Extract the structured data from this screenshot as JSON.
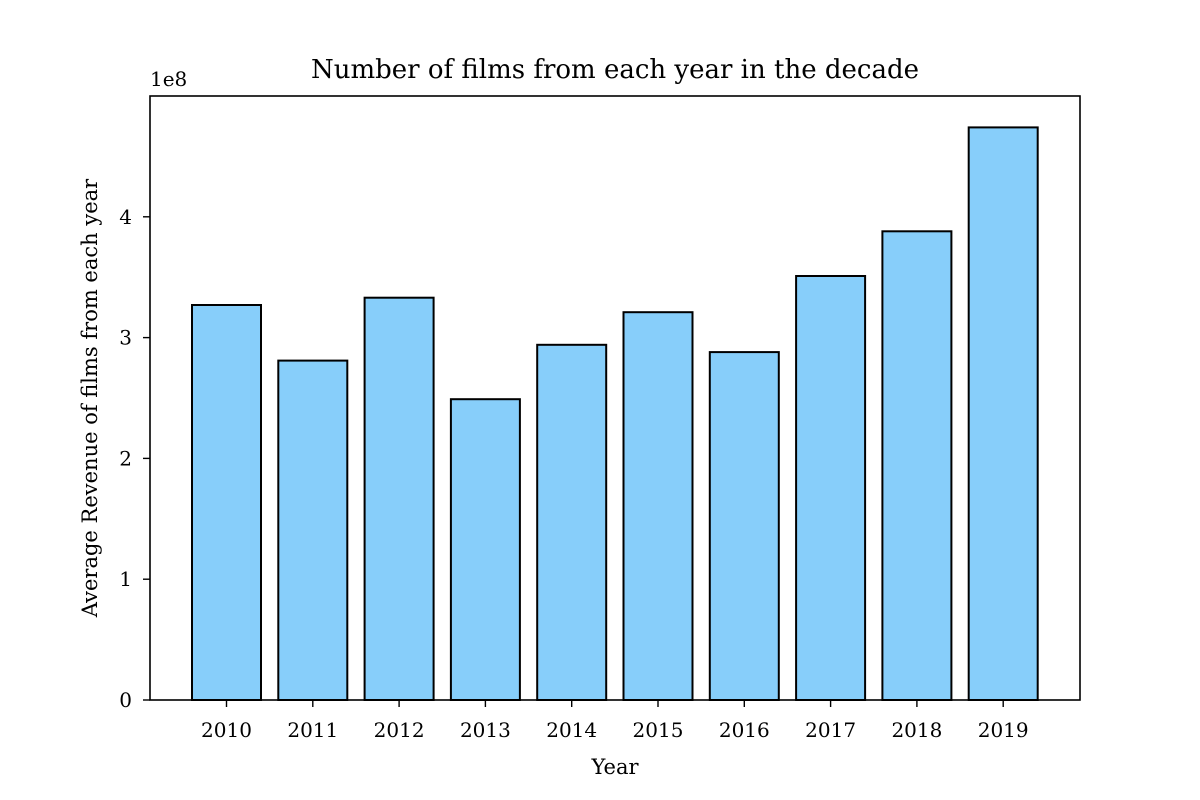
{
  "chart_data": {
    "type": "bar",
    "title": "Number of films from each year in the decade",
    "xlabel": "Year",
    "ylabel": "Average Revenue of films from each year",
    "y_offset_label": "1e8",
    "categories": [
      "2010",
      "2011",
      "2012",
      "2013",
      "2014",
      "2015",
      "2016",
      "2017",
      "2018",
      "2019"
    ],
    "values": [
      3.27,
      2.81,
      3.33,
      2.49,
      2.94,
      3.21,
      2.88,
      3.51,
      3.88,
      4.74
    ],
    "value_scale": 100000000,
    "ylim": [
      0,
      5.0
    ],
    "yticks": [
      "0",
      "1",
      "2",
      "3",
      "4"
    ],
    "grid": false,
    "legend": "none",
    "colors": {
      "bar_fill": "#87cefa",
      "bar_edge": "#000000",
      "axes": "#000000"
    }
  }
}
